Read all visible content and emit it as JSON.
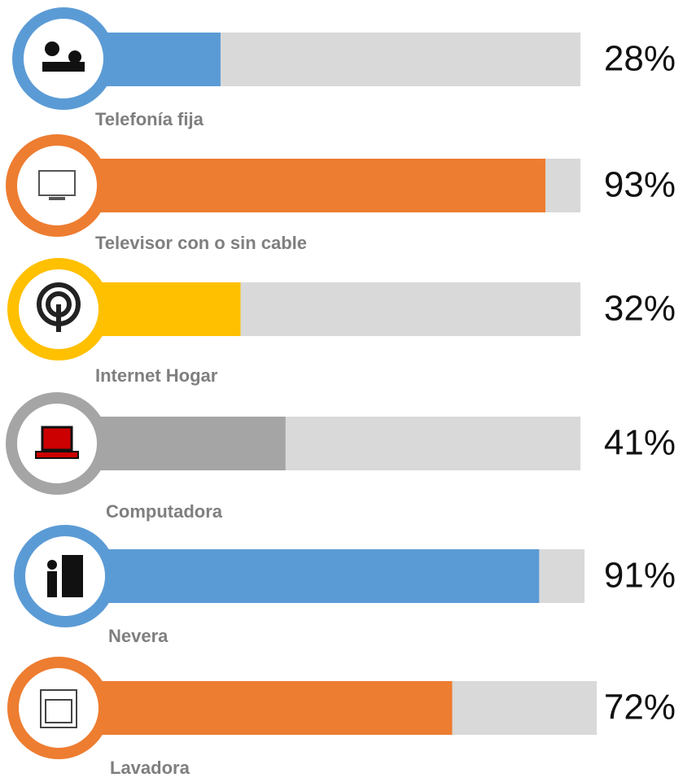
{
  "chart_data": {
    "type": "bar",
    "orientation": "horizontal",
    "categories": [
      "Telefonía fija",
      "Televisor con o sin cable",
      "Internet Hogar",
      "Computadora",
      "Nevera",
      "Lavadora"
    ],
    "values": [
      28,
      93,
      32,
      41,
      91,
      72
    ],
    "value_labels": [
      "28%",
      "93%",
      "32%",
      "41%",
      "91%",
      "72%"
    ],
    "colors": [
      "#5b9bd5",
      "#ed7d31",
      "#ffc000",
      "#a5a5a5",
      "#5b9bd5",
      "#ed7d31"
    ],
    "xlim": [
      0,
      100
    ]
  }
}
